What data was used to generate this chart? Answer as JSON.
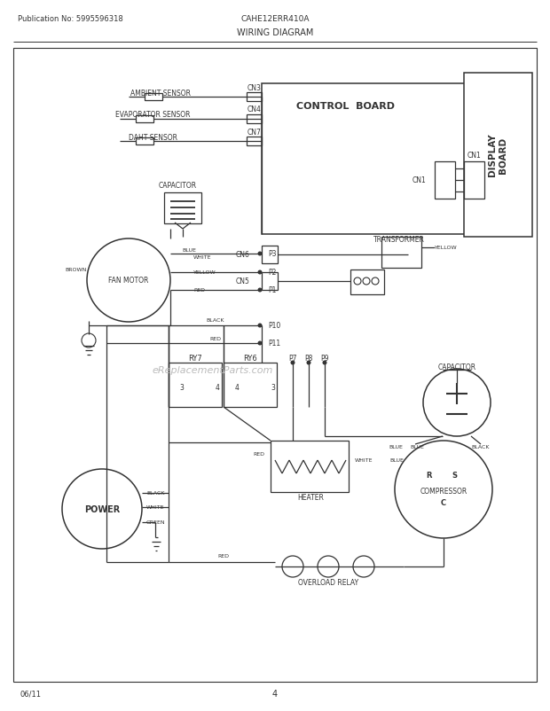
{
  "pub_no": "Publication No: 5995596318",
  "model": "CAHE12ERR410A",
  "diagram_title": "WIRING DIAGRAM",
  "footer_left": "06/11",
  "footer_center": "4",
  "watermark": "eReplacementParts.com",
  "bg": "#ffffff",
  "lc": "#333333"
}
